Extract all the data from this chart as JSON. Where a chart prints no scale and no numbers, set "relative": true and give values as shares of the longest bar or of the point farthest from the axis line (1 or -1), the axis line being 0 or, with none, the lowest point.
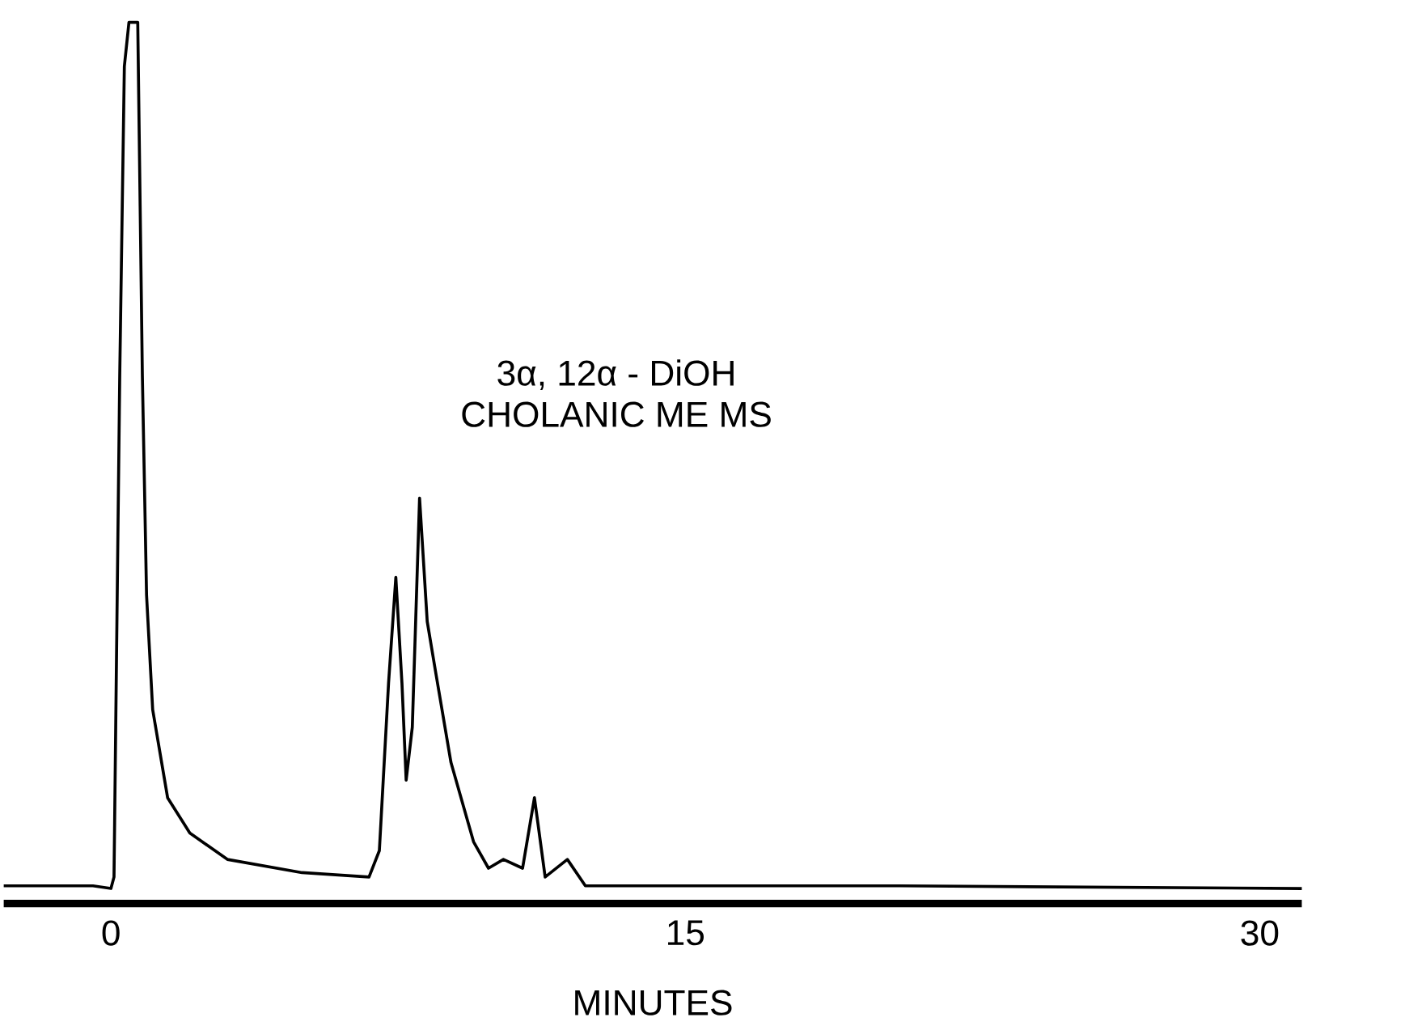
{
  "chart_data": {
    "type": "line",
    "relative": true,
    "xlabel": "MINUTES",
    "xlim": [
      -2.8,
      31.1
    ],
    "xticks": [
      0,
      15,
      30
    ],
    "annotations": [
      "3α, 12α - DiOH",
      "CHOLANIC ME MS"
    ],
    "series": [
      {
        "color": "#000000",
        "x": [
          -2.8,
          -0.47,
          0,
          0.08,
          0.23,
          0.35,
          0.47,
          0.7,
          0.82,
          0.93,
          1.09,
          1.48,
          2.06,
          3.04,
          4.99,
          6.74,
          7.01,
          7.25,
          7.44,
          7.6,
          7.71,
          7.87,
          8.06,
          8.26,
          8.49,
          8.88,
          9.47,
          9.86,
          10.25,
          10.75,
          11.06,
          11.34,
          11.92,
          12.39,
          14.7,
          20.6,
          31.1
        ],
        "values": [
          0.02,
          0.02,
          0.017,
          0.03,
          0.6,
          0.95,
          1.0,
          1.0,
          0.6,
          0.35,
          0.22,
          0.12,
          0.08,
          0.05,
          0.035,
          0.03,
          0.06,
          0.25,
          0.37,
          0.25,
          0.14,
          0.2,
          0.46,
          0.32,
          0.26,
          0.16,
          0.07,
          0.04,
          0.05,
          0.04,
          0.12,
          0.03,
          0.05,
          0.02,
          0.02,
          0.02,
          0.017
        ]
      }
    ]
  }
}
